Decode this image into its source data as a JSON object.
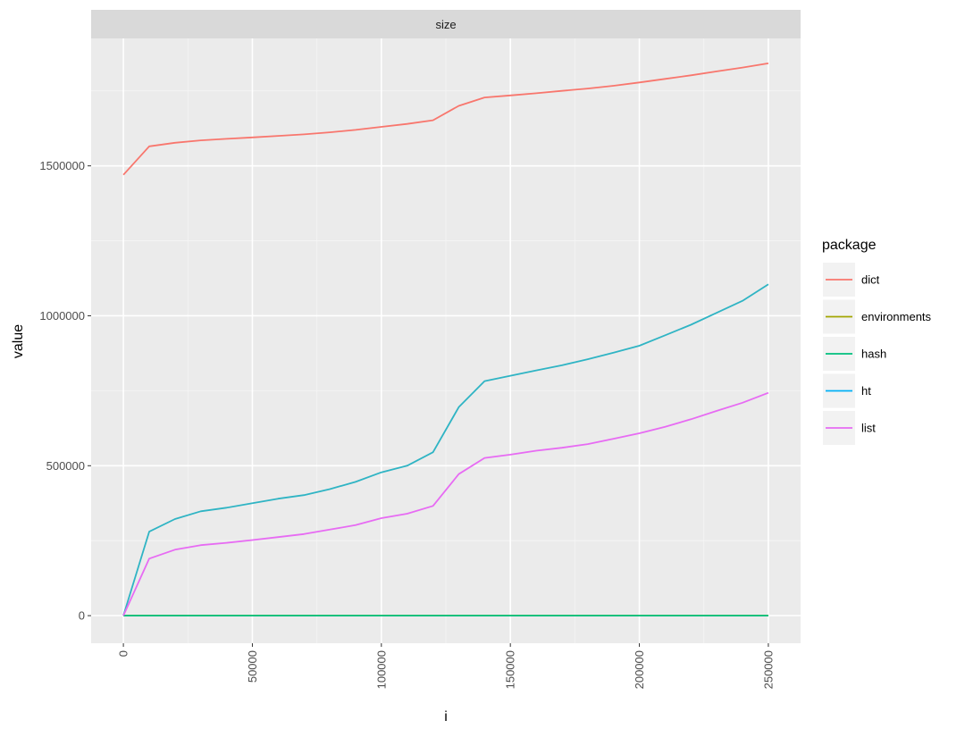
{
  "chart_data": {
    "type": "line",
    "facet": "size",
    "xlabel": "i",
    "ylabel": "value",
    "xlim": [
      -12500,
      262500
    ],
    "ylim": [
      -92000,
      1925000
    ],
    "x_ticks": [
      0,
      50000,
      100000,
      150000,
      200000,
      250000
    ],
    "x_tick_labels": [
      "0",
      "50000",
      "100000",
      "150000",
      "200000",
      "250000"
    ],
    "y_ticks": [
      0,
      500000,
      1000000,
      1500000
    ],
    "y_tick_labels": [
      "0",
      "500000",
      "1000000",
      "1500000"
    ],
    "grid": true,
    "legend": {
      "title": "package",
      "position": "right"
    },
    "x": [
      0,
      10000,
      20000,
      30000,
      40000,
      50000,
      60000,
      70000,
      80000,
      90000,
      100000,
      110000,
      120000,
      130000,
      140000,
      150000,
      160000,
      170000,
      180000,
      190000,
      200000,
      210000,
      220000,
      230000,
      240000,
      250000
    ],
    "series": [
      {
        "name": "dict",
        "color": "#F8766D",
        "values": [
          1470000,
          1565000,
          1577000,
          1585000,
          1590000,
          1595000,
          1600000,
          1605000,
          1612000,
          1620000,
          1630000,
          1640000,
          1652000,
          1700000,
          1728000,
          1735000,
          1742000,
          1750000,
          1758000,
          1767000,
          1778000,
          1790000,
          1802000,
          1815000,
          1828000,
          1842000
        ]
      },
      {
        "name": "environments",
        "color": "#A3A500",
        "values": [
          0,
          0,
          0,
          0,
          0,
          0,
          0,
          0,
          0,
          0,
          0,
          0,
          0,
          0,
          0,
          0,
          0,
          0,
          0,
          0,
          0,
          0,
          0,
          0,
          0,
          0
        ]
      },
      {
        "name": "hash",
        "color": "#00BF7D",
        "values": [
          0,
          0,
          0,
          0,
          0,
          0,
          0,
          0,
          0,
          0,
          0,
          0,
          0,
          0,
          0,
          0,
          0,
          0,
          0,
          0,
          0,
          0,
          0,
          0,
          0,
          0
        ]
      },
      {
        "name": "ht",
        "color": "#00B0F6",
        "values": [
          0,
          280000,
          322000,
          348000,
          360000,
          375000,
          390000,
          402000,
          422000,
          446000,
          478000,
          500000,
          545000,
          695000,
          782000,
          800000,
          818000,
          835000,
          855000,
          877000,
          900000,
          935000,
          970000,
          1010000,
          1050000,
          1105000
        ]
      },
      {
        "name": "list",
        "color": "#E76BF3",
        "values": [
          0,
          190000,
          220000,
          235000,
          243000,
          252000,
          262000,
          272000,
          287000,
          302000,
          325000,
          340000,
          366000,
          472000,
          526000,
          537000,
          550000,
          560000,
          572000,
          590000,
          608000,
          630000,
          655000,
          683000,
          710000,
          743000
        ]
      }
    ],
    "overlay_color": "#2fb4c4"
  }
}
